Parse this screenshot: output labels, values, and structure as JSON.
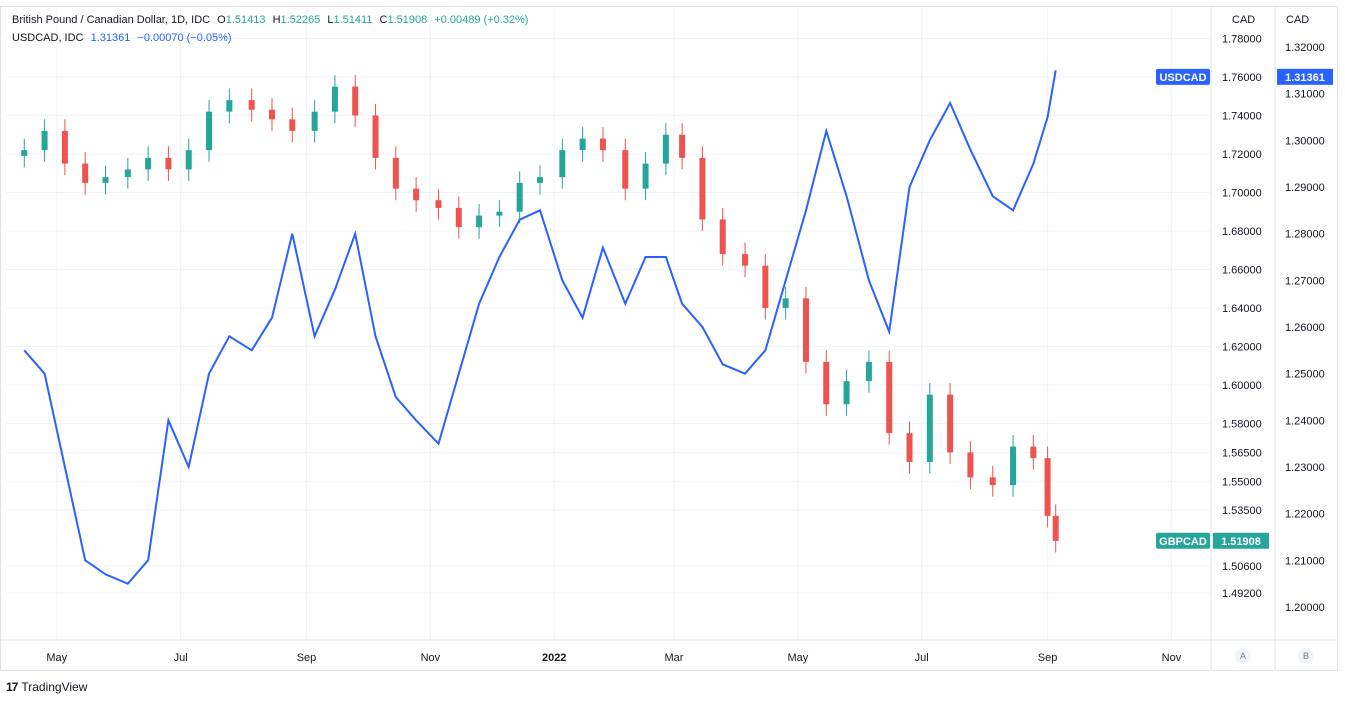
{
  "legend": {
    "main": {
      "symbol": "British Pound / Canadian Dollar, 1D, IDC",
      "o_label": "O",
      "o": "1.51413",
      "h_label": "H",
      "h": "1.52265",
      "l_label": "L",
      "l": "1.51411",
      "c_label": "C",
      "c": "1.51908",
      "change": "+0.00489 (+0.32%)"
    },
    "secondary": {
      "symbol": "USDCAD, IDC",
      "value": "1.31361",
      "change": "−0.00070 (−0.05%)"
    }
  },
  "axes": {
    "left_scale_title": "CAD",
    "right_scale_title": "CAD",
    "scale_a_button": "A",
    "scale_b_button": "B"
  },
  "branding": {
    "name": "TradingView",
    "logo": "17"
  },
  "colors": {
    "up": "#26a69a",
    "down": "#ef5350",
    "usdcad": "#2962ff",
    "grid": "#f0f3fa"
  },
  "chart_data": {
    "type": "line",
    "x_ticks": [
      "May",
      "Jul",
      "Sep",
      "Nov",
      "2022",
      "Mar",
      "May",
      "Jul",
      "Sep",
      "Nov"
    ],
    "gbpcad_axis_ticks": [
      "1.78000",
      "1.76000",
      "1.74000",
      "1.72000",
      "1.70000",
      "1.68000",
      "1.66000",
      "1.64000",
      "1.62000",
      "1.60000",
      "1.58000",
      "1.56500",
      "1.55000",
      "1.53500",
      "1.50600",
      "1.49200"
    ],
    "usdcad_axis_ticks": [
      "1.32000",
      "1.31000",
      "1.30000",
      "1.29000",
      "1.28000",
      "1.27000",
      "1.26000",
      "1.25000",
      "1.24000",
      "1.23000",
      "1.22000",
      "1.21000",
      "1.20000"
    ],
    "series": [
      {
        "name": "GBPCAD",
        "style": "candlestick",
        "last_value": "1.51908",
        "x": [
          "2021-04-15",
          "2021-04-25",
          "2021-05-05",
          "2021-05-15",
          "2021-05-25",
          "2021-06-05",
          "2021-06-15",
          "2021-06-25",
          "2021-07-05",
          "2021-07-15",
          "2021-07-25",
          "2021-08-05",
          "2021-08-15",
          "2021-08-25",
          "2021-09-05",
          "2021-09-15",
          "2021-09-25",
          "2021-10-05",
          "2021-10-15",
          "2021-10-25",
          "2021-11-05",
          "2021-11-15",
          "2021-11-25",
          "2021-12-05",
          "2021-12-15",
          "2021-12-25",
          "2022-01-05",
          "2022-01-15",
          "2022-01-25",
          "2022-02-05",
          "2022-02-15",
          "2022-02-25",
          "2022-03-05",
          "2022-03-15",
          "2022-03-25",
          "2022-04-05",
          "2022-04-15",
          "2022-04-25",
          "2022-05-05",
          "2022-05-15",
          "2022-05-25",
          "2022-06-05",
          "2022-06-15",
          "2022-06-25",
          "2022-07-05",
          "2022-07-15",
          "2022-07-25",
          "2022-08-05",
          "2022-08-15",
          "2022-08-25",
          "2022-09-01",
          "2022-09-05"
        ],
        "values": [
          1.722,
          1.732,
          1.715,
          1.705,
          1.708,
          1.712,
          1.718,
          1.712,
          1.722,
          1.742,
          1.748,
          1.743,
          1.738,
          1.732,
          1.742,
          1.755,
          1.74,
          1.718,
          1.702,
          1.696,
          1.692,
          1.682,
          1.688,
          1.69,
          1.705,
          1.708,
          1.722,
          1.728,
          1.722,
          1.702,
          1.715,
          1.73,
          1.718,
          1.686,
          1.668,
          1.662,
          1.64,
          1.645,
          1.612,
          1.59,
          1.602,
          1.612,
          1.575,
          1.56,
          1.595,
          1.565,
          1.552,
          1.548,
          1.568,
          1.562,
          1.532,
          1.519
        ]
      },
      {
        "name": "USDCAD",
        "style": "line",
        "last_value": "1.31361",
        "x": [
          "2021-04-15",
          "2021-04-25",
          "2021-05-05",
          "2021-05-15",
          "2021-05-25",
          "2021-06-05",
          "2021-06-15",
          "2021-06-25",
          "2021-07-05",
          "2021-07-15",
          "2021-07-25",
          "2021-08-05",
          "2021-08-15",
          "2021-08-25",
          "2021-09-05",
          "2021-09-15",
          "2021-09-25",
          "2021-10-05",
          "2021-10-15",
          "2021-10-25",
          "2021-11-05",
          "2021-11-15",
          "2021-11-25",
          "2021-12-05",
          "2021-12-15",
          "2021-12-25",
          "2022-01-05",
          "2022-01-15",
          "2022-01-25",
          "2022-02-05",
          "2022-02-15",
          "2022-02-25",
          "2022-03-05",
          "2022-03-15",
          "2022-03-25",
          "2022-04-05",
          "2022-04-15",
          "2022-04-25",
          "2022-05-05",
          "2022-05-15",
          "2022-05-25",
          "2022-06-05",
          "2022-06-15",
          "2022-06-25",
          "2022-07-05",
          "2022-07-15",
          "2022-07-25",
          "2022-08-05",
          "2022-08-15",
          "2022-08-25",
          "2022-09-01",
          "2022-09-05"
        ],
        "values": [
          1.255,
          1.25,
          1.23,
          1.21,
          1.207,
          1.205,
          1.21,
          1.24,
          1.23,
          1.25,
          1.258,
          1.255,
          1.262,
          1.28,
          1.258,
          1.268,
          1.28,
          1.258,
          1.245,
          1.24,
          1.235,
          1.25,
          1.265,
          1.275,
          1.283,
          1.285,
          1.27,
          1.262,
          1.277,
          1.265,
          1.275,
          1.275,
          1.265,
          1.26,
          1.252,
          1.25,
          1.255,
          1.27,
          1.285,
          1.302,
          1.288,
          1.27,
          1.259,
          1.29,
          1.3,
          1.308,
          1.298,
          1.288,
          1.285,
          1.295,
          1.305,
          1.315
        ]
      }
    ]
  }
}
